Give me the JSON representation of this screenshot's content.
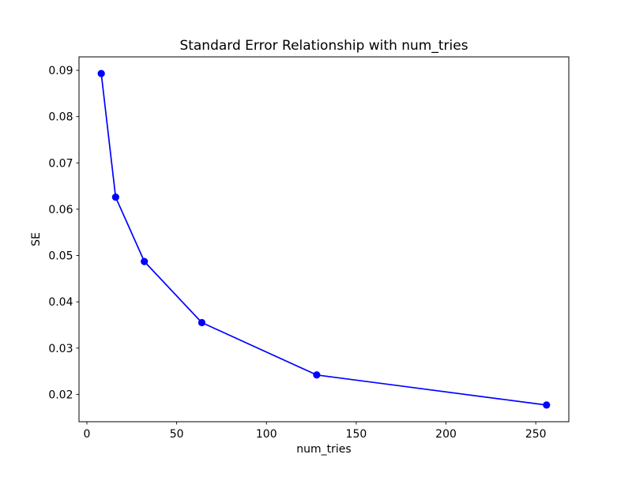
{
  "chart_data": {
    "type": "line",
    "title": "Standard Error Relationship with num_tries",
    "xlabel": "num_tries",
    "ylabel": "SE",
    "series": [
      {
        "name": "SE",
        "color": "#0000ff",
        "marker": "circle",
        "x": [
          8,
          16,
          32,
          64,
          128,
          256
        ],
        "y": [
          0.0893,
          0.0626,
          0.0487,
          0.0355,
          0.0242,
          0.0177
        ]
      }
    ],
    "xlim": [
      -4.4,
      268.4
    ],
    "ylim": [
      0.0141,
      0.0929
    ],
    "xticks": [
      0,
      50,
      100,
      150,
      200,
      250
    ],
    "yticks": [
      0.02,
      0.03,
      0.04,
      0.05,
      0.06,
      0.07,
      0.08,
      0.09
    ],
    "ytick_decimals": 2,
    "grid": false,
    "legend_position": "none",
    "background_color": "#ffffff",
    "spine_color": "#000000"
  }
}
